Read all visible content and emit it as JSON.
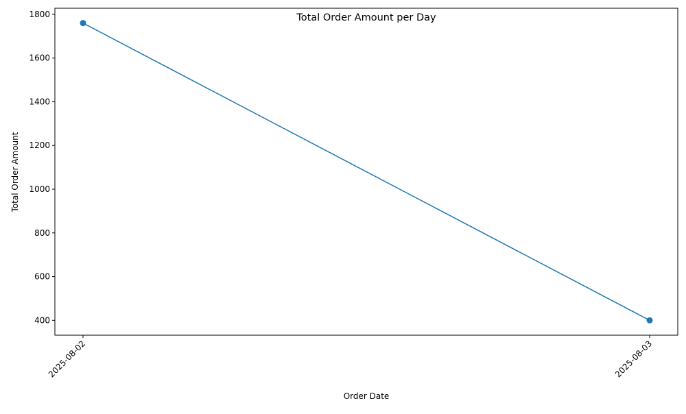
{
  "chart_data": {
    "type": "line",
    "title": "Total Order Amount per Day",
    "xlabel": "Order Date",
    "ylabel": "Total Order Amount",
    "categories": [
      "2025-08-02",
      "2025-08-03"
    ],
    "series": [
      {
        "values": [
          1760,
          400
        ],
        "color": "#1f77b4",
        "marker": "circle"
      }
    ],
    "yticks": [
      400,
      600,
      800,
      1000,
      1200,
      1400,
      1600,
      1800
    ],
    "ylim": [
      332,
      1828
    ],
    "grid": false,
    "legend": "none"
  }
}
